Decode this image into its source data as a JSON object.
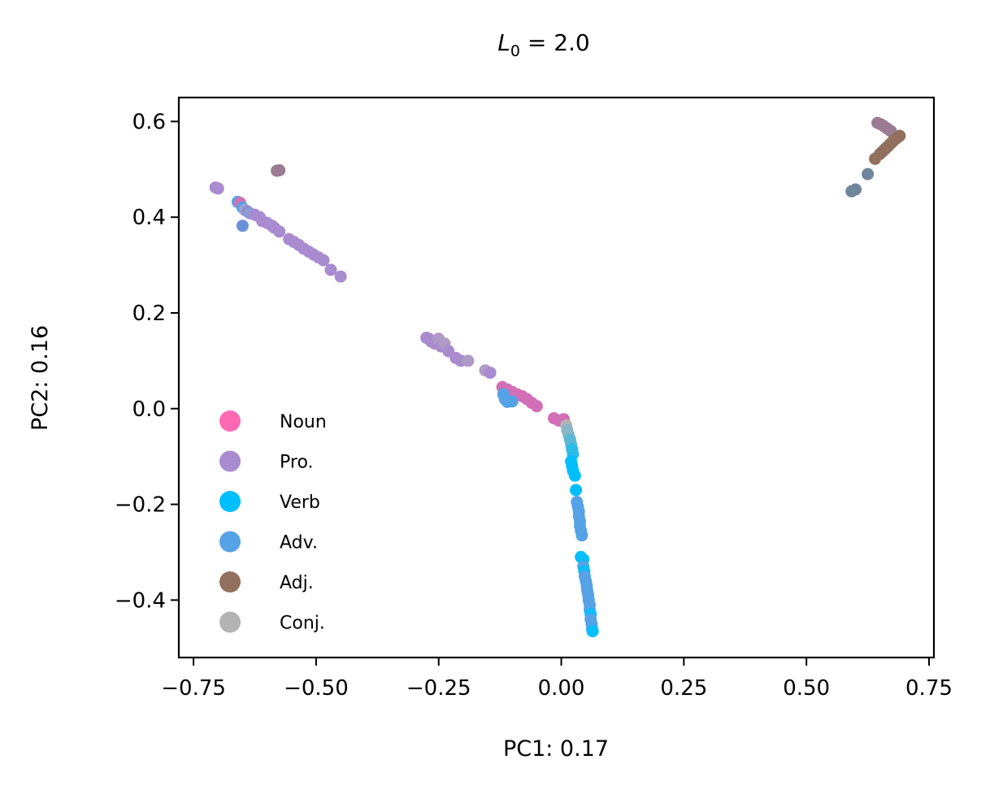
{
  "chart_data": {
    "type": "scatter",
    "title": "L0 = 2.0",
    "title_parts": {
      "main": "L",
      "subscript": "0",
      "rest": " = 2.0"
    },
    "xlabel": "PC1: 0.17",
    "ylabel": "PC2: 0.16",
    "xlim": [
      -0.78,
      0.76
    ],
    "ylim": [
      -0.52,
      0.65
    ],
    "xticks": [
      -0.75,
      -0.5,
      -0.25,
      0.0,
      0.25,
      0.5,
      0.75
    ],
    "xtick_labels": [
      "−0.75",
      "−0.50",
      "−0.25",
      "0.00",
      "0.25",
      "0.50",
      "0.75"
    ],
    "yticks": [
      -0.4,
      -0.2,
      0.0,
      0.2,
      0.4,
      0.6
    ],
    "ytick_labels": [
      "−0.4",
      "−0.2",
      "0.0",
      "0.2",
      "0.4",
      "0.6"
    ],
    "grid": false,
    "legend_position": "lower-left",
    "series": [
      {
        "name": "Noun",
        "color": "#ff69b4"
      },
      {
        "name": "Pro.",
        "color": "#a98bd0"
      },
      {
        "name": "Verb",
        "color": "#00bfff"
      },
      {
        "name": "Adv.",
        "color": "#56a2e6"
      },
      {
        "name": "Adj.",
        "color": "#91705e"
      },
      {
        "name": "Conj.",
        "color": "#b3b3b3"
      }
    ],
    "points": [
      {
        "x": -0.705,
        "y": 0.462,
        "c": "#a98bd0"
      },
      {
        "x": -0.7,
        "y": 0.46,
        "c": "#a98bd0"
      },
      {
        "x": -0.66,
        "y": 0.432,
        "c": "#56a2e6"
      },
      {
        "x": -0.655,
        "y": 0.43,
        "c": "#d26fb6"
      },
      {
        "x": -0.65,
        "y": 0.42,
        "c": "#56a2e6"
      },
      {
        "x": -0.645,
        "y": 0.415,
        "c": "#a0a4cc"
      },
      {
        "x": -0.64,
        "y": 0.412,
        "c": "#8f8dd8"
      },
      {
        "x": -0.635,
        "y": 0.408,
        "c": "#8a9bd6"
      },
      {
        "x": -0.625,
        "y": 0.405,
        "c": "#a98bd0"
      },
      {
        "x": -0.615,
        "y": 0.4,
        "c": "#a98bd0"
      },
      {
        "x": -0.65,
        "y": 0.382,
        "c": "#6b8fd8"
      },
      {
        "x": -0.61,
        "y": 0.392,
        "c": "#a98bd0"
      },
      {
        "x": -0.6,
        "y": 0.388,
        "c": "#a98bd0"
      },
      {
        "x": -0.59,
        "y": 0.382,
        "c": "#a98bd0"
      },
      {
        "x": -0.585,
        "y": 0.378,
        "c": "#a98bd0"
      },
      {
        "x": -0.575,
        "y": 0.37,
        "c": "#a98bd0"
      },
      {
        "x": -0.555,
        "y": 0.354,
        "c": "#a98bd0"
      },
      {
        "x": -0.545,
        "y": 0.348,
        "c": "#a98bd0"
      },
      {
        "x": -0.535,
        "y": 0.342,
        "c": "#a98bd0"
      },
      {
        "x": -0.525,
        "y": 0.334,
        "c": "#a98bd0"
      },
      {
        "x": -0.515,
        "y": 0.328,
        "c": "#a98bd0"
      },
      {
        "x": -0.505,
        "y": 0.322,
        "c": "#a98bd0"
      },
      {
        "x": -0.495,
        "y": 0.316,
        "c": "#a98bd0"
      },
      {
        "x": -0.485,
        "y": 0.31,
        "c": "#a98bd0"
      },
      {
        "x": -0.47,
        "y": 0.29,
        "c": "#a98bd0"
      },
      {
        "x": -0.45,
        "y": 0.276,
        "c": "#a98bd0"
      },
      {
        "x": -0.58,
        "y": 0.497,
        "c": "#9b7c92"
      },
      {
        "x": -0.575,
        "y": 0.498,
        "c": "#9b7c92"
      },
      {
        "x": -0.275,
        "y": 0.148,
        "c": "#a98bd0"
      },
      {
        "x": -0.27,
        "y": 0.146,
        "c": "#a98bd0"
      },
      {
        "x": -0.265,
        "y": 0.14,
        "c": "#a98bd0"
      },
      {
        "x": -0.258,
        "y": 0.136,
        "c": "#a98bd0"
      },
      {
        "x": -0.25,
        "y": 0.146,
        "c": "#b09bc6"
      },
      {
        "x": -0.245,
        "y": 0.13,
        "c": "#a98bd0"
      },
      {
        "x": -0.238,
        "y": 0.136,
        "c": "#b09bc6"
      },
      {
        "x": -0.23,
        "y": 0.12,
        "c": "#a98bd0"
      },
      {
        "x": -0.215,
        "y": 0.106,
        "c": "#a98bd0"
      },
      {
        "x": -0.205,
        "y": 0.1,
        "c": "#a98bd0"
      },
      {
        "x": -0.19,
        "y": 0.1,
        "c": "#b09bc6"
      },
      {
        "x": -0.155,
        "y": 0.08,
        "c": "#b09bc6"
      },
      {
        "x": -0.145,
        "y": 0.075,
        "c": "#a98bd0"
      },
      {
        "x": -0.12,
        "y": 0.045,
        "c": "#d26fb6"
      },
      {
        "x": -0.11,
        "y": 0.04,
        "c": "#d26fb6"
      },
      {
        "x": -0.1,
        "y": 0.035,
        "c": "#d26fb6"
      },
      {
        "x": -0.09,
        "y": 0.03,
        "c": "#d26fb6"
      },
      {
        "x": -0.08,
        "y": 0.026,
        "c": "#d26fb6"
      },
      {
        "x": -0.07,
        "y": 0.02,
        "c": "#d26fb6"
      },
      {
        "x": -0.06,
        "y": 0.012,
        "c": "#d26fb6"
      },
      {
        "x": -0.05,
        "y": 0.005,
        "c": "#d26fb6"
      },
      {
        "x": -0.118,
        "y": 0.03,
        "c": "#56a2e6"
      },
      {
        "x": -0.115,
        "y": 0.02,
        "c": "#56a2e6"
      },
      {
        "x": -0.11,
        "y": 0.014,
        "c": "#56a2e6"
      },
      {
        "x": -0.1,
        "y": 0.015,
        "c": "#56a2e6"
      },
      {
        "x": -0.015,
        "y": -0.02,
        "c": "#d26fb6"
      },
      {
        "x": -0.005,
        "y": -0.025,
        "c": "#d26fb6"
      },
      {
        "x": 0.005,
        "y": -0.022,
        "c": "#d26fb6"
      },
      {
        "x": 0.01,
        "y": -0.035,
        "c": "#b3b3b3"
      },
      {
        "x": 0.012,
        "y": -0.045,
        "c": "#8ab6c8"
      },
      {
        "x": 0.015,
        "y": -0.055,
        "c": "#8ab6c8"
      },
      {
        "x": 0.018,
        "y": -0.065,
        "c": "#5ab8d8"
      },
      {
        "x": 0.02,
        "y": -0.075,
        "c": "#5ab8d8"
      },
      {
        "x": 0.022,
        "y": -0.085,
        "c": "#2dbbe8"
      },
      {
        "x": 0.024,
        "y": -0.095,
        "c": "#2dbbe8"
      },
      {
        "x": 0.02,
        "y": -0.11,
        "c": "#00bfff"
      },
      {
        "x": 0.022,
        "y": -0.12,
        "c": "#00bfff"
      },
      {
        "x": 0.024,
        "y": -0.13,
        "c": "#00bfff"
      },
      {
        "x": 0.028,
        "y": -0.14,
        "c": "#00bfff"
      },
      {
        "x": 0.03,
        "y": -0.17,
        "c": "#00bfff"
      },
      {
        "x": 0.032,
        "y": -0.195,
        "c": "#56a2e6"
      },
      {
        "x": 0.034,
        "y": -0.205,
        "c": "#56a2e6"
      },
      {
        "x": 0.036,
        "y": -0.215,
        "c": "#56a2e6"
      },
      {
        "x": 0.036,
        "y": -0.225,
        "c": "#56a2e6"
      },
      {
        "x": 0.038,
        "y": -0.235,
        "c": "#56a2e6"
      },
      {
        "x": 0.038,
        "y": -0.245,
        "c": "#56a2e6"
      },
      {
        "x": 0.04,
        "y": -0.255,
        "c": "#56a2e6"
      },
      {
        "x": 0.042,
        "y": -0.265,
        "c": "#56a2e6"
      },
      {
        "x": 0.04,
        "y": -0.31,
        "c": "#00bfff"
      },
      {
        "x": 0.045,
        "y": -0.315,
        "c": "#00bfff"
      },
      {
        "x": 0.045,
        "y": -0.33,
        "c": "#56a2e6"
      },
      {
        "x": 0.047,
        "y": -0.34,
        "c": "#00bfff"
      },
      {
        "x": 0.048,
        "y": -0.35,
        "c": "#56a2e6"
      },
      {
        "x": 0.05,
        "y": -0.36,
        "c": "#56a2e6"
      },
      {
        "x": 0.052,
        "y": -0.37,
        "c": "#56a2e6"
      },
      {
        "x": 0.053,
        "y": -0.38,
        "c": "#56a2e6"
      },
      {
        "x": 0.055,
        "y": -0.39,
        "c": "#56a2e6"
      },
      {
        "x": 0.056,
        "y": -0.4,
        "c": "#56a2e6"
      },
      {
        "x": 0.058,
        "y": -0.41,
        "c": "#56a2e6"
      },
      {
        "x": 0.058,
        "y": -0.42,
        "c": "#56a2e6"
      },
      {
        "x": 0.06,
        "y": -0.43,
        "c": "#00bfff"
      },
      {
        "x": 0.06,
        "y": -0.44,
        "c": "#56a2e6"
      },
      {
        "x": 0.062,
        "y": -0.45,
        "c": "#56a2e6"
      },
      {
        "x": 0.063,
        "y": -0.46,
        "c": "#56a2e6"
      },
      {
        "x": 0.064,
        "y": -0.465,
        "c": "#00bfff"
      },
      {
        "x": 0.645,
        "y": 0.597,
        "c": "#9b7c92"
      },
      {
        "x": 0.652,
        "y": 0.594,
        "c": "#9b7c92"
      },
      {
        "x": 0.658,
        "y": 0.59,
        "c": "#9b7c92"
      },
      {
        "x": 0.665,
        "y": 0.585,
        "c": "#9b7c92"
      },
      {
        "x": 0.672,
        "y": 0.58,
        "c": "#9b7c92"
      },
      {
        "x": 0.69,
        "y": 0.57,
        "c": "#91705e"
      },
      {
        "x": 0.685,
        "y": 0.566,
        "c": "#91705e"
      },
      {
        "x": 0.68,
        "y": 0.562,
        "c": "#91705e"
      },
      {
        "x": 0.675,
        "y": 0.557,
        "c": "#91705e"
      },
      {
        "x": 0.67,
        "y": 0.552,
        "c": "#91705e"
      },
      {
        "x": 0.665,
        "y": 0.547,
        "c": "#91705e"
      },
      {
        "x": 0.66,
        "y": 0.542,
        "c": "#91705e"
      },
      {
        "x": 0.655,
        "y": 0.537,
        "c": "#91705e"
      },
      {
        "x": 0.65,
        "y": 0.532,
        "c": "#91705e"
      },
      {
        "x": 0.64,
        "y": 0.522,
        "c": "#91705e"
      },
      {
        "x": 0.625,
        "y": 0.49,
        "c": "#6f859c"
      },
      {
        "x": 0.6,
        "y": 0.458,
        "c": "#6f859c"
      },
      {
        "x": 0.592,
        "y": 0.454,
        "c": "#6f859c"
      }
    ]
  }
}
